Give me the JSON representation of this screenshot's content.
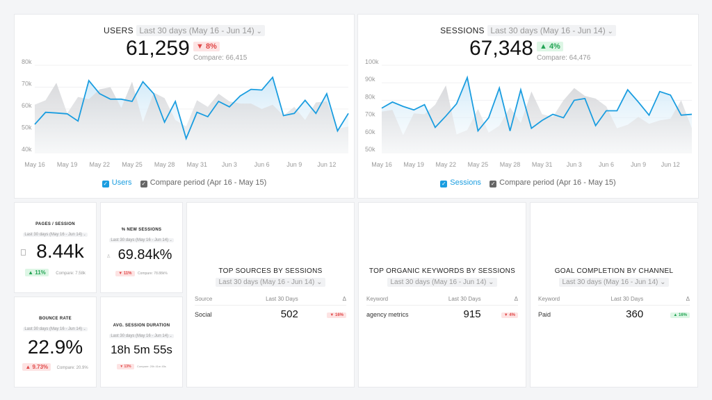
{
  "period": "Last 30 days (May 16 - Jun 14)",
  "users": {
    "title": "USERS",
    "value": "61,259",
    "delta": "▼ 8%",
    "compare": "Compare: 66,415",
    "legend_main": "Users",
    "legend_compare": "Compare period (Apr 16 - May 15)"
  },
  "sessions": {
    "title": "SESSIONS",
    "value": "67,348",
    "delta": "▲ 4%",
    "compare": "Compare: 64,476",
    "legend_main": "Sessions",
    "legend_compare": "Compare period (Apr 16 - May 15)"
  },
  "colors": {
    "accent": "#1a9de0",
    "compare": "#d9dadc",
    "down": "#e04848",
    "up": "#23a454"
  },
  "chart_data": [
    {
      "type": "area",
      "title": "USERS",
      "x_ticks": [
        "May 16",
        "May 19",
        "May 22",
        "May 25",
        "May 28",
        "May 31",
        "Jun 3",
        "Jun 6",
        "Jun 9",
        "Jun 12"
      ],
      "y_ticks": [
        "40k",
        "50k",
        "60k",
        "70k",
        "80k"
      ],
      "ylim": [
        40000,
        80000
      ],
      "grid": true,
      "legend": "bottom",
      "series": [
        {
          "name": "Users",
          "values": [
            53000,
            58500,
            58200,
            57800,
            54500,
            73000,
            67000,
            64500,
            64500,
            63500,
            72500,
            67000,
            54000,
            63500,
            46500,
            58500,
            56500,
            63500,
            61000,
            66000,
            69000,
            68700,
            74500,
            57000,
            58000,
            64000,
            58000,
            67000,
            50000,
            58000
          ]
        },
        {
          "name": "Compare period (Apr 16 - May 15)",
          "values": [
            62000,
            64000,
            72000,
            58000,
            65500,
            64500,
            69000,
            70000,
            60500,
            72500,
            54000,
            67500,
            65000,
            55000,
            52000,
            64000,
            61000,
            67000,
            63500,
            62500,
            62500,
            60000,
            62000,
            57000,
            61000,
            55000,
            63000,
            63500,
            51000,
            52000
          ]
        }
      ]
    },
    {
      "type": "area",
      "title": "SESSIONS",
      "x_ticks": [
        "May 16",
        "May 19",
        "May 22",
        "May 25",
        "May 28",
        "May 31",
        "Jun 3",
        "Jun 6",
        "Jun 9",
        "Jun 12"
      ],
      "y_ticks": [
        "50k",
        "60k",
        "70k",
        "80k",
        "90k",
        "100k"
      ],
      "ylim": [
        50000,
        100000
      ],
      "grid": true,
      "legend": "bottom",
      "series": [
        {
          "name": "Sessions",
          "values": [
            75500,
            79000,
            76500,
            74500,
            77500,
            64500,
            71000,
            78000,
            93000,
            62500,
            70000,
            87000,
            62500,
            86000,
            64000,
            68500,
            72000,
            70000,
            80000,
            81000,
            65500,
            74000,
            74000,
            86000,
            79000,
            71500,
            85000,
            83000,
            71500,
            72000
          ]
        },
        {
          "name": "Compare period (Apr 16 - May 15)",
          "values": [
            73500,
            74500,
            60000,
            72500,
            72000,
            77500,
            88500,
            60500,
            63000,
            75000,
            61500,
            65500,
            76000,
            67000,
            85000,
            72000,
            70500,
            80000,
            87000,
            82500,
            81000,
            76500,
            64000,
            66000,
            70500,
            66500,
            68500,
            69500,
            80000,
            64000
          ]
        }
      ]
    }
  ],
  "kpis": [
    {
      "title": "PAGES / SESSION",
      "value": "8.44k",
      "delta": "▲ 11%",
      "dir": "up",
      "compare": "Compare: 7.58k",
      "icon": "document-icon"
    },
    {
      "title": "% NEW SESSIONS",
      "value": "69.84k%",
      "delta": "▼ 11%",
      "dir": "down",
      "compare": "Compare: 78.88k%",
      "icon": "user-icon"
    },
    {
      "title": "BOUNCE RATE",
      "value": "22.9%",
      "delta": "▲ 9.73%",
      "dir": "down",
      "compare": "Compare: 20.9%"
    },
    {
      "title": "AVG. SESSION DURATION",
      "value": "18h 5m 55s",
      "delta": "▼ 13%",
      "dir": "down",
      "compare": "Compare: 20h 41m 45s"
    }
  ],
  "tables": [
    {
      "title": "TOP SOURCES BY SESSIONS",
      "cols": [
        "Source",
        "Last 30 Days",
        "Δ"
      ],
      "rows": [
        {
          "name": "Social",
          "value": "502",
          "delta": "▼ 16%",
          "dir": "down"
        }
      ]
    },
    {
      "title": "TOP ORGANIC KEYWORDS BY SESSIONS",
      "cols": [
        "Keyword",
        "Last 30 Days",
        "Δ"
      ],
      "rows": [
        {
          "name": "agency metrics",
          "value": "915",
          "delta": "▼ 4%",
          "dir": "down"
        }
      ]
    },
    {
      "title": "GOAL COMPLETION BY CHANNEL",
      "cols": [
        "Keyword",
        "Last 30 Days",
        "Δ"
      ],
      "rows": [
        {
          "name": "Paid",
          "value": "360",
          "delta": "▲ 16%",
          "dir": "up"
        }
      ]
    }
  ]
}
